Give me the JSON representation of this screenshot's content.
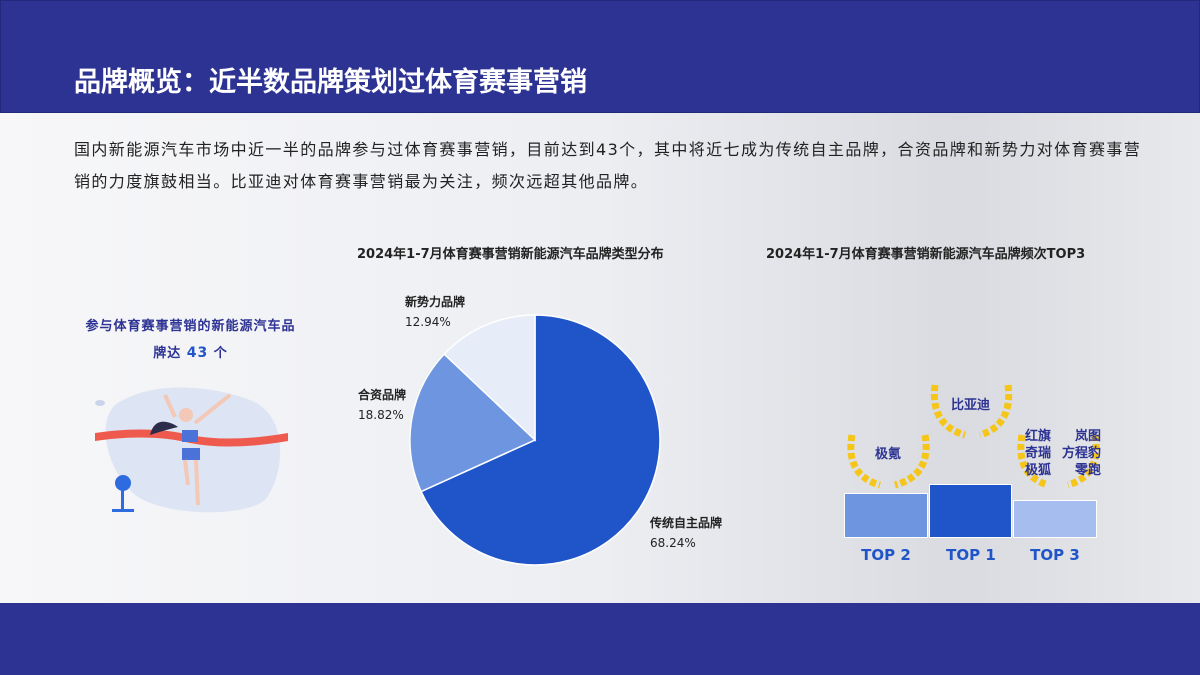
{
  "header": {
    "title": "品牌概览：近半数品牌策划过体育赛事营销"
  },
  "intro": "国内新能源汽车市场中近一半的品牌参与过体育赛事营销，目前达到43个，其中将近七成为传统自主品牌，合资品牌和新势力对体育赛事营销的力度旗鼓相当。比亚迪对体育赛事营销最为关注，频次远超其他品牌。",
  "callout": {
    "text_prefix": "参与体育赛事营销的新能源汽车品",
    "text_mid": "牌达",
    "number": "43",
    "unit": "个"
  },
  "colors": {
    "header": "#2d3393",
    "dark_blue": "#1f55c9",
    "mid_blue": "#6e95e0",
    "light_blue": "#e6ecf8",
    "gold": "#f5c518"
  },
  "chart_data": [
    {
      "type": "pie",
      "title": "2024年1-7月体育赛事营销新能源汽车品牌类型分布",
      "slices": [
        {
          "label": "传统自主品牌",
          "value": 68.24,
          "display": "68.24%",
          "color": "#1f55c9"
        },
        {
          "label": "合资品牌",
          "value": 18.82,
          "display": "18.82%",
          "color": "#6e95e0"
        },
        {
          "label": "新势力品牌",
          "value": 12.94,
          "display": "12.94%",
          "color": "#e6ecf8"
        }
      ]
    },
    {
      "type": "podium",
      "title": "2024年1-7月体育赛事营销新能源汽车品牌频次TOP3",
      "ranks": [
        {
          "label": "TOP 2",
          "brands": [
            "极氪"
          ],
          "color": "#6e95e0"
        },
        {
          "label": "TOP 1",
          "brands": [
            "比亚迪"
          ],
          "color": "#1f55c9"
        },
        {
          "label": "TOP 3",
          "brands": [
            "红旗",
            "奇瑞",
            "极狐",
            "岚图",
            "方程豹",
            "零跑"
          ],
          "color": "#a6bdf0"
        }
      ]
    }
  ]
}
